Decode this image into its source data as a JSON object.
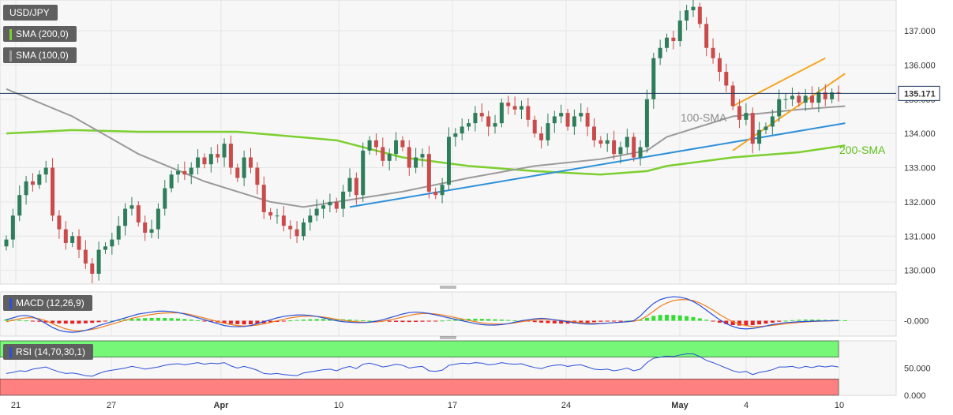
{
  "colors": {
    "candle_up": "#2e7d5b",
    "candle_down": "#c94b4b",
    "sma200": "#7ccf2e",
    "sma100": "#9a9a9a",
    "trendline_blue": "#2d8fd8",
    "channel_orange": "#f5a623",
    "macd_line": "#2b4fd9",
    "signal_line": "#f07d1a",
    "hist_pos": "#33dd33",
    "hist_neg": "#e52222",
    "rsi_line": "#2b4fd9",
    "rsi_overbought": "#77f777",
    "rsi_oversold": "#ff8080",
    "grid": "#e6e6e6",
    "panel_bg": "#f7f7f7"
  },
  "chart_data": [
    {
      "type": "candlestick",
      "panel": "price",
      "symbol": "USD/JPY",
      "ylim": [
        129.6,
        137.9
      ],
      "y_ticks": [
        "137.000",
        "136.000",
        "135.000",
        "134.000",
        "133.000",
        "132.000",
        "131.000",
        "130.000"
      ],
      "x_ticks": [
        "21",
        "27",
        "Apr",
        "10",
        "17",
        "24",
        "May",
        "4",
        "10"
      ],
      "current_price": "135.171",
      "legend": [
        "USD/JPY",
        "SMA (200,0)",
        "SMA (100,0)"
      ],
      "annotations": [
        "100-SMA",
        "200-SMA"
      ],
      "closes": [
        130.9,
        131.6,
        132.2,
        132.6,
        132.5,
        132.8,
        133.0,
        131.6,
        131.2,
        130.8,
        131.0,
        130.6,
        130.2,
        129.9,
        130.6,
        130.7,
        130.9,
        131.3,
        131.8,
        131.9,
        131.4,
        131.1,
        131.2,
        131.8,
        132.4,
        132.8,
        132.9,
        132.8,
        133.0,
        133.3,
        133.1,
        133.4,
        133.3,
        133.7,
        133.0,
        132.7,
        133.3,
        133.0,
        132.5,
        131.7,
        131.6,
        131.6,
        131.3,
        131.2,
        131.0,
        131.4,
        131.6,
        131.8,
        131.9,
        132.0,
        131.8,
        132.3,
        132.7,
        132.2,
        133.5,
        133.8,
        133.6,
        133.2,
        133.4,
        133.8,
        133.6,
        133.0,
        133.3,
        133.4,
        132.3,
        132.2,
        132.5,
        133.9,
        134.0,
        134.2,
        134.3,
        134.6,
        134.5,
        134.2,
        134.3,
        134.9,
        134.8,
        134.7,
        134.8,
        134.4,
        134.0,
        133.8,
        134.3,
        134.5,
        134.6,
        134.2,
        134.5,
        134.6,
        134.2,
        133.8,
        133.7,
        133.8,
        133.4,
        133.6,
        133.9,
        133.3,
        133.6,
        135.0,
        136.2,
        136.5,
        136.8,
        136.7,
        137.3,
        137.6,
        137.7,
        137.2,
        136.5,
        136.2,
        135.8,
        135.4,
        134.8,
        134.4,
        134.6,
        133.7,
        134.1,
        134.2,
        134.5,
        135.0,
        135.0,
        135.1,
        134.9,
        135.1,
        134.9,
        135.2,
        135.0,
        135.2,
        135.171
      ],
      "series": [
        {
          "name": "SMA (200,0)",
          "x": [
            0,
            10,
            20,
            35,
            50,
            60,
            70,
            80,
            90,
            97,
            100,
            110,
            120,
            127
          ],
          "values": [
            134.0,
            134.1,
            134.05,
            134.05,
            133.8,
            133.3,
            133.05,
            132.9,
            132.8,
            132.9,
            133.05,
            133.3,
            133.45,
            133.65
          ]
        },
        {
          "name": "SMA (100,0)",
          "x": [
            0,
            10,
            20,
            30,
            40,
            45,
            50,
            60,
            70,
            80,
            90,
            97,
            100,
            110,
            120,
            127
          ],
          "values": [
            135.3,
            134.5,
            133.4,
            132.6,
            132.0,
            131.85,
            132.0,
            132.3,
            132.7,
            133.05,
            133.25,
            133.5,
            133.9,
            134.5,
            134.7,
            134.8
          ]
        }
      ],
      "trendlines": [
        {
          "name": "support",
          "color": "trendline_blue",
          "points": [
            [
              52,
              131.85
            ],
            [
              127,
              134.3
            ]
          ]
        },
        {
          "name": "channel-upper",
          "color": "channel_orange",
          "points": [
            [
              110,
              134.8
            ],
            [
              124,
              136.2
            ]
          ]
        },
        {
          "name": "channel-lower",
          "color": "channel_orange",
          "points": [
            [
              110,
              133.5
            ],
            [
              127,
              135.75
            ]
          ]
        }
      ]
    },
    {
      "type": "macd",
      "panel": "macd",
      "label": "MACD (12,26,9)",
      "y_ticks": [
        "-0.000"
      ],
      "hist": [
        0.15,
        0.12,
        0.08,
        0.03,
        -0.03,
        -0.1,
        -0.18,
        -0.24,
        -0.28,
        -0.3,
        -0.31,
        -0.3,
        -0.27,
        -0.22,
        -0.15,
        -0.08,
        0.0,
        0.08,
        0.15,
        0.2,
        0.24,
        0.27,
        0.29,
        0.3,
        0.29,
        0.27,
        0.23,
        0.18,
        0.12,
        0.05,
        -0.02,
        -0.1,
        -0.18,
        -0.26,
        -0.32,
        -0.36,
        -0.38,
        -0.37,
        -0.33,
        -0.27,
        -0.2,
        -0.12,
        -0.04,
        0.03,
        0.08,
        0.12,
        0.15,
        0.17,
        0.18,
        0.18,
        0.17,
        0.15,
        0.12,
        0.08,
        0.04,
        0.0,
        -0.04,
        -0.07,
        -0.1,
        -0.12,
        -0.13,
        -0.13,
        -0.12,
        -0.1,
        -0.07,
        -0.03,
        0.02,
        0.08,
        0.14,
        0.18,
        0.2,
        0.21,
        0.2,
        0.18,
        0.15,
        0.12,
        0.08,
        0.03,
        -0.02,
        -0.08,
        -0.14,
        -0.2,
        -0.25,
        -0.28,
        -0.3,
        -0.3,
        -0.28,
        -0.25,
        -0.2,
        -0.15,
        -0.1,
        -0.06,
        -0.03,
        -0.01,
        0.0,
        0.02,
        0.1,
        0.3,
        0.5,
        0.6,
        0.62,
        0.6,
        0.55,
        0.48,
        0.38,
        0.25,
        0.1,
        -0.05,
        -0.2,
        -0.35,
        -0.45,
        -0.5,
        -0.5,
        -0.45,
        -0.38,
        -0.3,
        -0.2,
        -0.1,
        0.0,
        0.06,
        0.1,
        0.12,
        0.12,
        0.11,
        0.1,
        0.08,
        0.06,
        0.05
      ],
      "macd": [
        0.1,
        0.3,
        0.5,
        0.55,
        0.4,
        0.1,
        -0.3,
        -0.7,
        -1.0,
        -1.15,
        -1.2,
        -1.15,
        -1.0,
        -0.8,
        -0.5,
        -0.3,
        -0.1,
        0.1,
        0.3,
        0.5,
        0.7,
        0.8,
        0.9,
        1.0,
        1.0,
        0.95,
        0.85,
        0.7,
        0.5,
        0.3,
        0.1,
        -0.1,
        -0.3,
        -0.5,
        -0.6,
        -0.62,
        -0.6,
        -0.5,
        -0.3,
        -0.1,
        0.1,
        0.3,
        0.45,
        0.55,
        0.6,
        0.6,
        0.55,
        0.45,
        0.3,
        0.15,
        0.0,
        -0.1,
        -0.15,
        -0.2,
        -0.2,
        -0.15,
        -0.05,
        0.1,
        0.3,
        0.5,
        0.7,
        0.85,
        0.9,
        0.85,
        0.75,
        0.6,
        0.45,
        0.3,
        0.15,
        0.0,
        -0.15,
        -0.3,
        -0.4,
        -0.45,
        -0.45,
        -0.4,
        -0.3,
        -0.15,
        0.0,
        0.1,
        0.2,
        0.25,
        0.2,
        0.1,
        0.0,
        -0.1,
        -0.2,
        -0.3,
        -0.35,
        -0.35,
        -0.3,
        -0.25,
        -0.2,
        -0.15,
        -0.1,
        0.0,
        0.5,
        1.2,
        1.8,
        2.2,
        2.4,
        2.5,
        2.45,
        2.3,
        2.0,
        1.6,
        1.1,
        0.6,
        0.1,
        -0.3,
        -0.6,
        -0.8,
        -0.85,
        -0.8,
        -0.7,
        -0.55,
        -0.4,
        -0.3,
        -0.2,
        -0.15,
        -0.1,
        -0.08,
        -0.05,
        -0.03,
        -0.02,
        0.0,
        0.02
      ],
      "signal": [
        -0.1,
        0.05,
        0.2,
        0.3,
        0.32,
        0.2,
        0.0,
        -0.3,
        -0.6,
        -0.85,
        -1.0,
        -1.05,
        -1.0,
        -0.9,
        -0.75,
        -0.55,
        -0.35,
        -0.15,
        0.05,
        0.25,
        0.4,
        0.55,
        0.65,
        0.75,
        0.8,
        0.82,
        0.82,
        0.75,
        0.62,
        0.45,
        0.28,
        0.1,
        -0.08,
        -0.25,
        -0.4,
        -0.5,
        -0.55,
        -0.52,
        -0.45,
        -0.32,
        -0.18,
        0.0,
        0.15,
        0.3,
        0.4,
        0.45,
        0.48,
        0.45,
        0.38,
        0.28,
        0.15,
        0.05,
        -0.05,
        -0.1,
        -0.15,
        -0.15,
        -0.12,
        -0.05,
        0.08,
        0.22,
        0.38,
        0.55,
        0.68,
        0.75,
        0.75,
        0.7,
        0.6,
        0.48,
        0.32,
        0.18,
        0.03,
        -0.1,
        -0.22,
        -0.3,
        -0.35,
        -0.35,
        -0.32,
        -0.22,
        -0.1,
        0.0,
        0.08,
        0.15,
        0.15,
        0.1,
        0.03,
        -0.05,
        -0.12,
        -0.2,
        -0.25,
        -0.28,
        -0.28,
        -0.25,
        -0.2,
        -0.15,
        -0.1,
        -0.05,
        0.1,
        0.5,
        1.0,
        1.5,
        1.85,
        2.1,
        2.2,
        2.2,
        2.1,
        1.85,
        1.5,
        1.1,
        0.65,
        0.25,
        -0.1,
        -0.35,
        -0.5,
        -0.6,
        -0.6,
        -0.55,
        -0.48,
        -0.4,
        -0.32,
        -0.25,
        -0.18,
        -0.12,
        -0.08,
        -0.05,
        -0.03,
        -0.01,
        0.0
      ],
      "ylim": [
        -1.6,
        3.0
      ]
    },
    {
      "type": "rsi",
      "panel": "rsi",
      "label": "RSI (14,70,30,1)",
      "y_ticks": [
        "50.000",
        "0.000"
      ],
      "ylim": [
        0,
        100
      ],
      "overbought": 70,
      "oversold": 30,
      "values": [
        40,
        42,
        45,
        44,
        48,
        50,
        52,
        47,
        43,
        40,
        41,
        39,
        36,
        35,
        40,
        44,
        46,
        48,
        50,
        53,
        51,
        48,
        50,
        52,
        55,
        57,
        58,
        56,
        58,
        60,
        57,
        59,
        58,
        60,
        54,
        50,
        53,
        50,
        46,
        40,
        39,
        40,
        38,
        37,
        36,
        41,
        43,
        45,
        47,
        48,
        45,
        50,
        53,
        49,
        57,
        59,
        56,
        52,
        54,
        57,
        55,
        50,
        52,
        53,
        45,
        44,
        46,
        55,
        57,
        59,
        58,
        60,
        59,
        56,
        57,
        60,
        58,
        57,
        58,
        54,
        51,
        49,
        53,
        55,
        56,
        53,
        55,
        56,
        52,
        48,
        47,
        48,
        45,
        47,
        50,
        45,
        48,
        60,
        68,
        70,
        72,
        71,
        74,
        76,
        76,
        71,
        64,
        60,
        55,
        50,
        45,
        42,
        44,
        38,
        42,
        44,
        47,
        52,
        52,
        53,
        50,
        53,
        51,
        54,
        52,
        54,
        52
      ]
    }
  ]
}
